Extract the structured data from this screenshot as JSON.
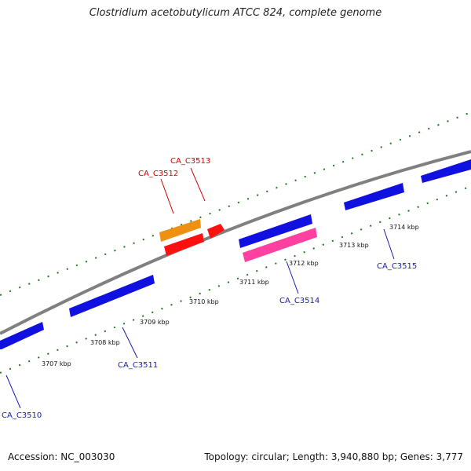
{
  "title": "Clostridium acetobutylicum ATCC 824, complete genome",
  "footer": {
    "accession": "Accession: NC_003030",
    "summary": "Topology: circular; Length: 3,940,880 bp; Genes: 3,777"
  },
  "ticks": [
    "3707 kbp",
    "3708 kbp",
    "3709 kbp",
    "3710 kbp",
    "3711 kbp",
    "3712 kbp",
    "3713 kbp",
    "3714 kbp"
  ],
  "genes": {
    "red": [
      "CA_C3512",
      "CA_C3513"
    ],
    "blue": [
      "CA_C3510",
      "CA_C3511",
      "CA_C3514",
      "CA_C3515"
    ]
  },
  "colors": {
    "backbone": "#808080",
    "forward_gene": "#1010e0",
    "reverse_gene": "#ff1010",
    "orange_gene": "#f09010",
    "pink_gene": "#ff40a0",
    "tick": "#1a7a1a"
  }
}
